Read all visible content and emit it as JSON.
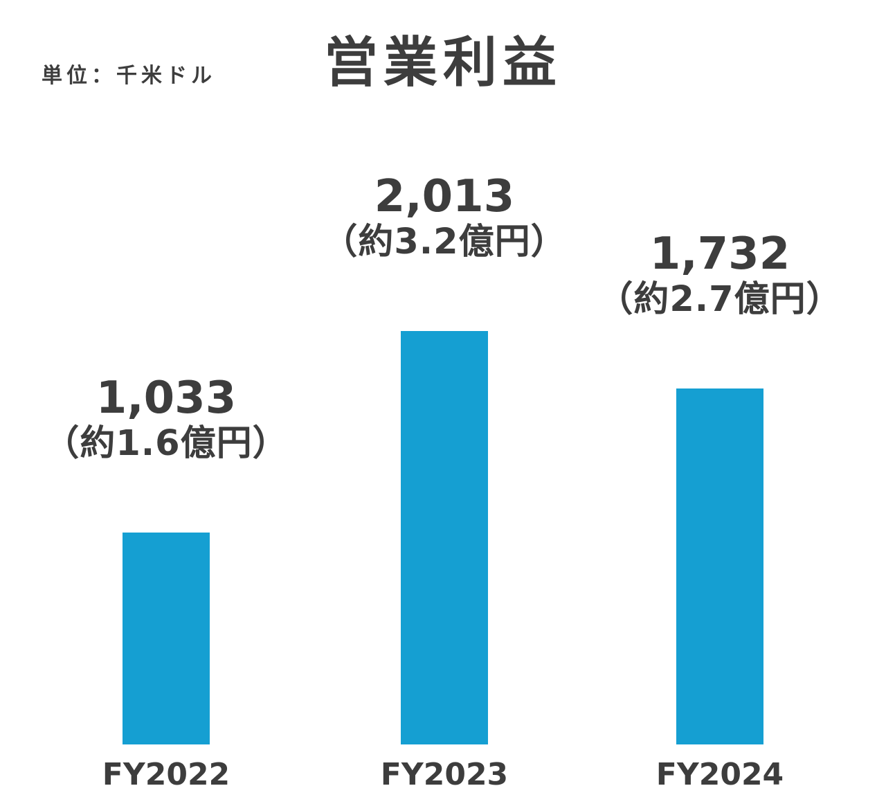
{
  "chart_data": {
    "type": "bar",
    "title": "営業利益",
    "unit_label": "単位：千米ドル",
    "categories": [
      "FY2022",
      "FY2023",
      "FY2024"
    ],
    "values": [
      1033,
      2013,
      1732
    ],
    "value_labels": [
      "1,033",
      "2,013",
      "1,732"
    ],
    "sub_labels": [
      "（約1.6億円）",
      "（約3.2億円）",
      "（約2.7億円）"
    ],
    "ylim": [
      0,
      2013
    ],
    "bar_color": "#159fd2",
    "text_color": "#3d3d3d",
    "grid": false,
    "legend": "none",
    "xlabel": "",
    "ylabel": ""
  }
}
